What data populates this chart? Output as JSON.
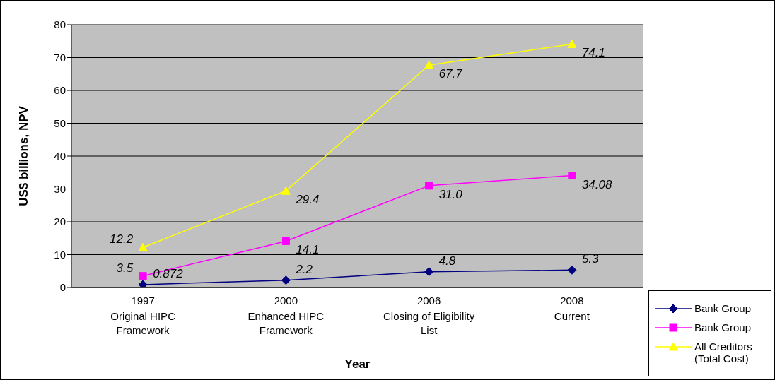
{
  "chart_data": {
    "type": "line",
    "xlabel": "Year",
    "ylabel": "US$ billions, NPV",
    "categories": [
      "1997\nOriginal HIPC\nFramework",
      "2000\nEnhanced HIPC\nFramework",
      "2006\nClosing of Eligibility\nList",
      "2008\nCurrent"
    ],
    "series": [
      {
        "name": "Bank Group",
        "color": "#000080",
        "marker": "diamond",
        "values": [
          0.872,
          2.2,
          4.8,
          5.3
        ],
        "value_labels": [
          "0.872",
          "2.2",
          "4.8",
          "5.3"
        ]
      },
      {
        "name": "Bank Group",
        "color": "#ff00ff",
        "marker": "square",
        "values": [
          3.5,
          14.1,
          31.0,
          34.08
        ],
        "value_labels": [
          "3.5",
          "14.1",
          "31.0",
          "34.08"
        ]
      },
      {
        "name": "All Creditors (Total Cost)",
        "color": "#ffff00",
        "marker": "triangle",
        "values": [
          12.2,
          29.4,
          67.7,
          74.1
        ],
        "value_labels": [
          "12.2",
          "29.4",
          "67.7",
          "74.1"
        ]
      }
    ],
    "ylim": [
      0,
      80
    ],
    "yticks": [
      0,
      10,
      20,
      30,
      40,
      50,
      60,
      70,
      80
    ],
    "grid": "y",
    "legend": "bottom right"
  }
}
